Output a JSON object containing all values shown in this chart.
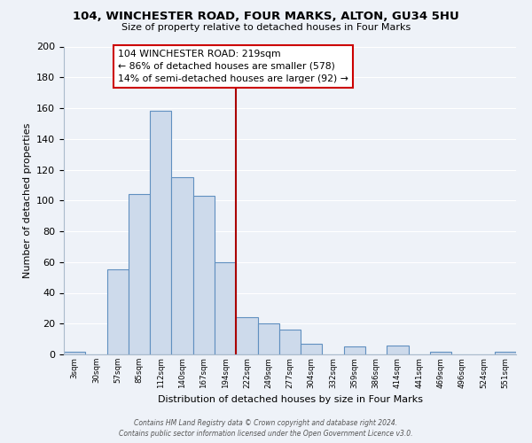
{
  "title": "104, WINCHESTER ROAD, FOUR MARKS, ALTON, GU34 5HU",
  "subtitle": "Size of property relative to detached houses in Four Marks",
  "xlabel": "Distribution of detached houses by size in Four Marks",
  "ylabel": "Number of detached properties",
  "bar_labels": [
    "3sqm",
    "30sqm",
    "57sqm",
    "85sqm",
    "112sqm",
    "140sqm",
    "167sqm",
    "194sqm",
    "222sqm",
    "249sqm",
    "277sqm",
    "304sqm",
    "332sqm",
    "359sqm",
    "386sqm",
    "414sqm",
    "441sqm",
    "469sqm",
    "496sqm",
    "524sqm",
    "551sqm"
  ],
  "bar_values": [
    2,
    0,
    55,
    104,
    158,
    115,
    103,
    60,
    24,
    20,
    16,
    7,
    0,
    5,
    0,
    6,
    0,
    2,
    0,
    0,
    2
  ],
  "bar_color": "#cddaeb",
  "bar_edge_color": "#6090c0",
  "vline_index": 8,
  "vline_color": "#aa0000",
  "annotation_title": "104 WINCHESTER ROAD: 219sqm",
  "annotation_line1": "← 86% of detached houses are smaller (578)",
  "annotation_line2": "14% of semi-detached houses are larger (92) →",
  "annotation_box_edge": "#cc0000",
  "annotation_box_face": "white",
  "ylim": [
    0,
    200
  ],
  "yticks": [
    0,
    20,
    40,
    60,
    80,
    100,
    120,
    140,
    160,
    180,
    200
  ],
  "footer_line1": "Contains HM Land Registry data © Crown copyright and database right 2024.",
  "footer_line2": "Contains public sector information licensed under the Open Government Licence v3.0.",
  "background_color": "#eef2f8",
  "grid_color": "#ffffff",
  "spine_color": "#aabbcc"
}
